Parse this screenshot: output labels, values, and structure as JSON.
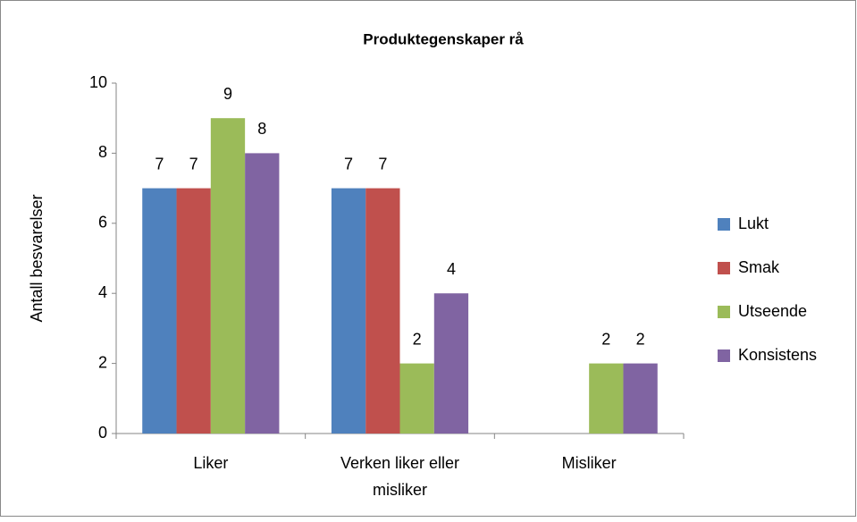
{
  "chart_data": {
    "type": "bar",
    "title": "Produktegenskaper rå",
    "y_label": "Antall besvarelser",
    "categories": [
      "Liker",
      "Verken liker eller misliker",
      "Misliker"
    ],
    "series": [
      {
        "name": "Lukt",
        "color": "#4f81bd",
        "values": [
          7,
          7,
          null
        ]
      },
      {
        "name": "Smak",
        "color": "#c0504d",
        "values": [
          7,
          7,
          null
        ]
      },
      {
        "name": "Utseende",
        "color": "#9bbb59",
        "values": [
          9,
          2,
          2
        ]
      },
      {
        "name": "Konsistens",
        "color": "#8064a2",
        "values": [
          8,
          4,
          2
        ]
      }
    ],
    "ylim": [
      0,
      10
    ],
    "yticks": [
      0,
      2,
      4,
      6,
      8,
      10
    ],
    "grid": false,
    "legend": "right"
  }
}
